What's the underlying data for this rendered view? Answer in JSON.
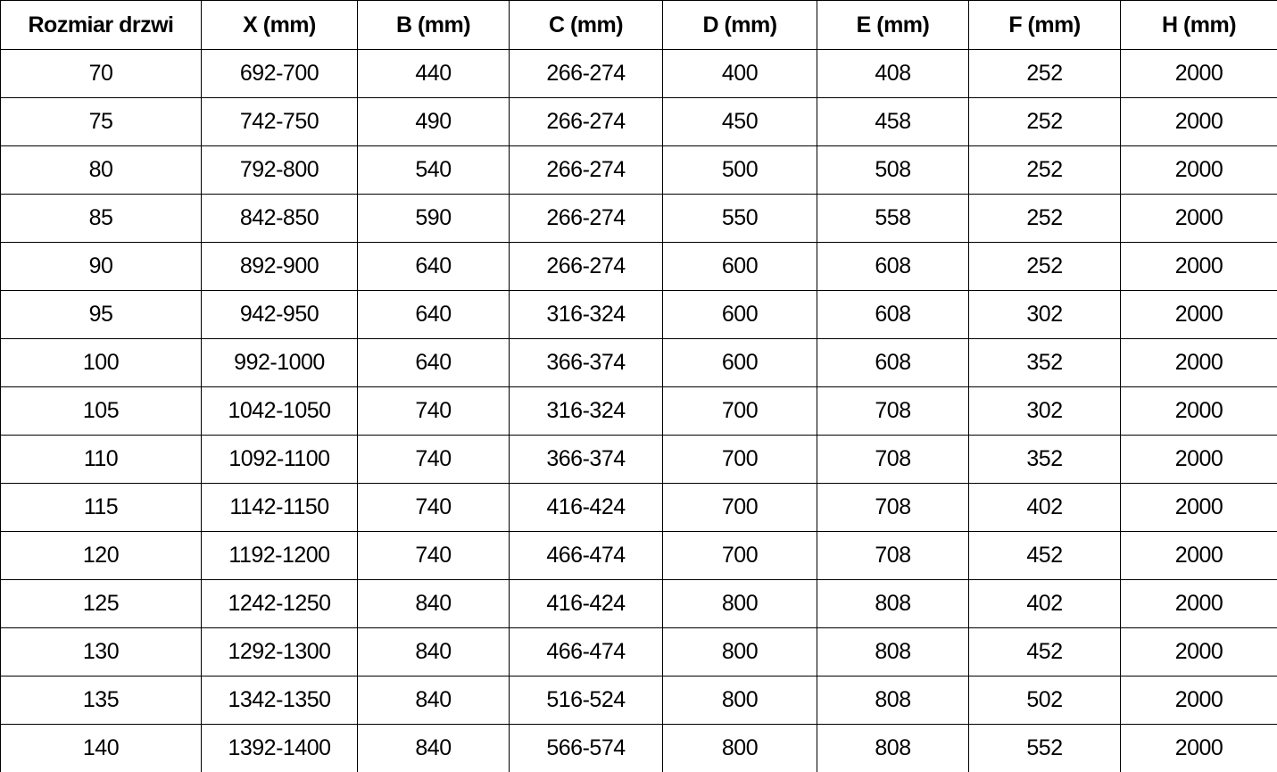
{
  "colors": {
    "background": "#ffffff",
    "border": "#000000",
    "text": "#000000"
  },
  "table": {
    "headers": [
      "Rozmiar drzwi",
      "X (mm)",
      "B (mm)",
      "C (mm)",
      "D (mm)",
      "E (mm)",
      "F (mm)",
      "H (mm)"
    ],
    "rows": [
      [
        "70",
        "692-700",
        "440",
        "266-274",
        "400",
        "408",
        "252",
        "2000"
      ],
      [
        "75",
        "742-750",
        "490",
        "266-274",
        "450",
        "458",
        "252",
        "2000"
      ],
      [
        "80",
        "792-800",
        "540",
        "266-274",
        "500",
        "508",
        "252",
        "2000"
      ],
      [
        "85",
        "842-850",
        "590",
        "266-274",
        "550",
        "558",
        "252",
        "2000"
      ],
      [
        "90",
        "892-900",
        "640",
        "266-274",
        "600",
        "608",
        "252",
        "2000"
      ],
      [
        "95",
        "942-950",
        "640",
        "316-324",
        "600",
        "608",
        "302",
        "2000"
      ],
      [
        "100",
        "992-1000",
        "640",
        "366-374",
        "600",
        "608",
        "352",
        "2000"
      ],
      [
        "105",
        "1042-1050",
        "740",
        "316-324",
        "700",
        "708",
        "302",
        "2000"
      ],
      [
        "110",
        "1092-1100",
        "740",
        "366-374",
        "700",
        "708",
        "352",
        "2000"
      ],
      [
        "115",
        "1142-1150",
        "740",
        "416-424",
        "700",
        "708",
        "402",
        "2000"
      ],
      [
        "120",
        "1192-1200",
        "740",
        "466-474",
        "700",
        "708",
        "452",
        "2000"
      ],
      [
        "125",
        "1242-1250",
        "840",
        "416-424",
        "800",
        "808",
        "402",
        "2000"
      ],
      [
        "130",
        "1292-1300",
        "840",
        "466-474",
        "800",
        "808",
        "452",
        "2000"
      ],
      [
        "135",
        "1342-1350",
        "840",
        "516-524",
        "800",
        "808",
        "502",
        "2000"
      ],
      [
        "140",
        "1392-1400",
        "840",
        "566-574",
        "800",
        "808",
        "552",
        "2000"
      ]
    ]
  }
}
